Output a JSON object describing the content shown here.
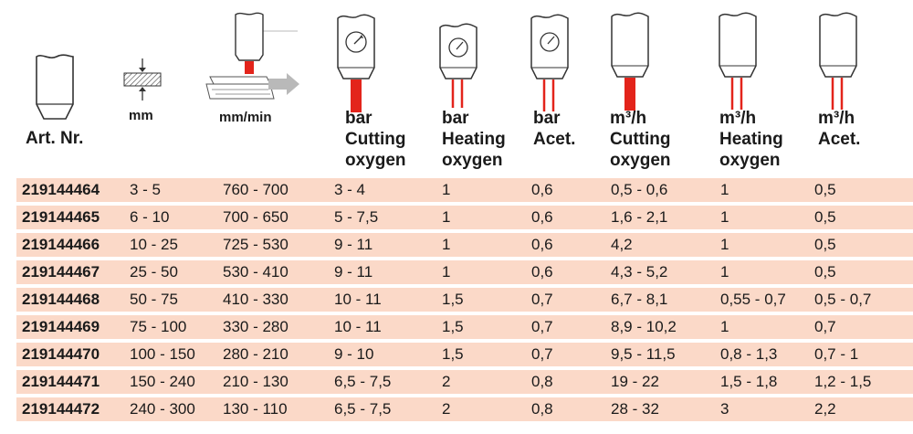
{
  "header": {
    "art": "Art. Nr.",
    "mm": "mm",
    "mm_min": "mm/min",
    "col_cut_bar": {
      "unit": "bar",
      "l1": "Cutting",
      "l2": "oxygen"
    },
    "col_heat_bar": {
      "unit": "bar",
      "l1": "Heating",
      "l2": "oxygen"
    },
    "col_acet_bar": {
      "unit": "bar",
      "l1": "Acet."
    },
    "col_cut_m3": {
      "unit": "m³/h",
      "l1": "Cutting",
      "l2": "oxygen"
    },
    "col_heat_m3": {
      "unit": "m³/h",
      "l1": "Heating",
      "l2": "oxygen"
    },
    "col_acet_m3": {
      "unit": "m³/h",
      "l1": "Acet."
    }
  },
  "colors": {
    "row_bg": "#fbd9c8",
    "accent_red": "#e3241b"
  },
  "rows": [
    [
      "219144464",
      "3 - 5",
      "760 - 700",
      "3 - 4",
      "1",
      "0,6",
      "0,5 - 0,6",
      "1",
      "0,5"
    ],
    [
      "219144465",
      "6 - 10",
      "700 - 650",
      "5 - 7,5",
      "1",
      "0,6",
      "1,6 - 2,1",
      "1",
      "0,5"
    ],
    [
      "219144466",
      "10 - 25",
      "725 - 530",
      "9 - 11",
      "1",
      "0,6",
      "4,2",
      "1",
      "0,5"
    ],
    [
      "219144467",
      "25 - 50",
      "530 - 410",
      "9 - 11",
      "1",
      "0,6",
      "4,3 - 5,2",
      "1",
      "0,5"
    ],
    [
      "219144468",
      "50 - 75",
      "410 - 330",
      "10 - 11",
      "1,5",
      "0,7",
      "6,7 - 8,1",
      "0,55 - 0,7",
      "0,5 - 0,7"
    ],
    [
      "219144469",
      "75 - 100",
      "330 - 280",
      "10 - 11",
      "1,5",
      "0,7",
      "8,9 - 10,2",
      "1",
      "0,7"
    ],
    [
      "219144470",
      "100 - 150",
      "280 - 210",
      "9 - 10",
      "1,5",
      "0,7",
      "9,5 - 11,5",
      "0,8 - 1,3",
      "0,7 - 1"
    ],
    [
      "219144471",
      "150 - 240",
      "210 - 130",
      "6,5 - 7,5",
      "2",
      "0,8",
      "19 - 22",
      "1,5 - 1,8",
      "1,2 - 1,5"
    ],
    [
      "219144472",
      "240 - 300",
      "130 - 110",
      "6,5 - 7,5",
      "2",
      "0,8",
      "28 - 32",
      "3",
      "2,2"
    ]
  ]
}
